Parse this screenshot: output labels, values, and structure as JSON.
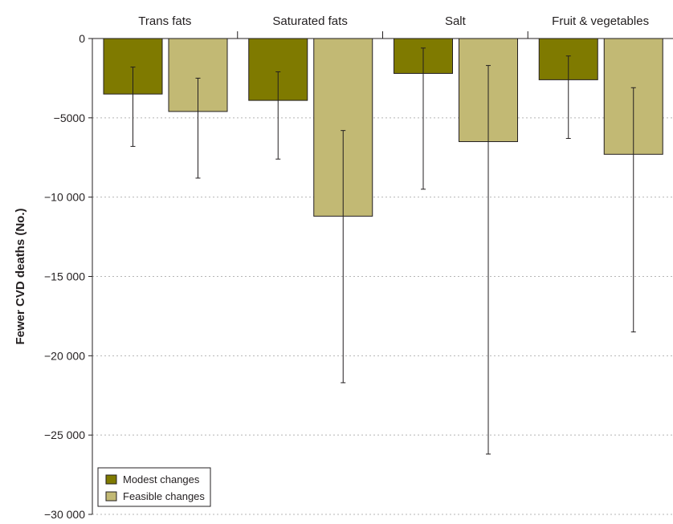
{
  "chart_data": {
    "type": "bar",
    "title": "",
    "xlabel": "",
    "ylabel": "Fewer CVD deaths (No.)",
    "categories": [
      "Trans fats",
      "Saturated fats",
      "Salt",
      "Fruit & vegetables"
    ],
    "series": [
      {
        "name": "Modest changes",
        "color": "#7f7a00",
        "values": [
          -3500,
          -3900,
          -2200,
          -2600
        ],
        "err_low": [
          -6800,
          -7600,
          -9500,
          -6300
        ],
        "err_high": [
          -1800,
          -2100,
          -600,
          -1100
        ]
      },
      {
        "name": "Feasible changes",
        "color": "#c2b974",
        "values": [
          -4600,
          -11200,
          -6500,
          -7300
        ],
        "err_low": [
          -8800,
          -21700,
          -26200,
          -18500
        ],
        "err_high": [
          -2500,
          -5800,
          -1700,
          -3100
        ]
      }
    ],
    "ylim": [
      -30000,
      0
    ],
    "yticks": [
      0,
      -5000,
      -10000,
      -15000,
      -20000,
      -25000,
      -30000
    ],
    "ytick_labels": [
      "0",
      "−5000",
      "−10 000",
      "−15 000",
      "−20 000",
      "−25 000",
      "−30 000"
    ],
    "grid": "horizontal-dotted",
    "legend_position": "bottom-left",
    "category_axis_position": "top"
  }
}
